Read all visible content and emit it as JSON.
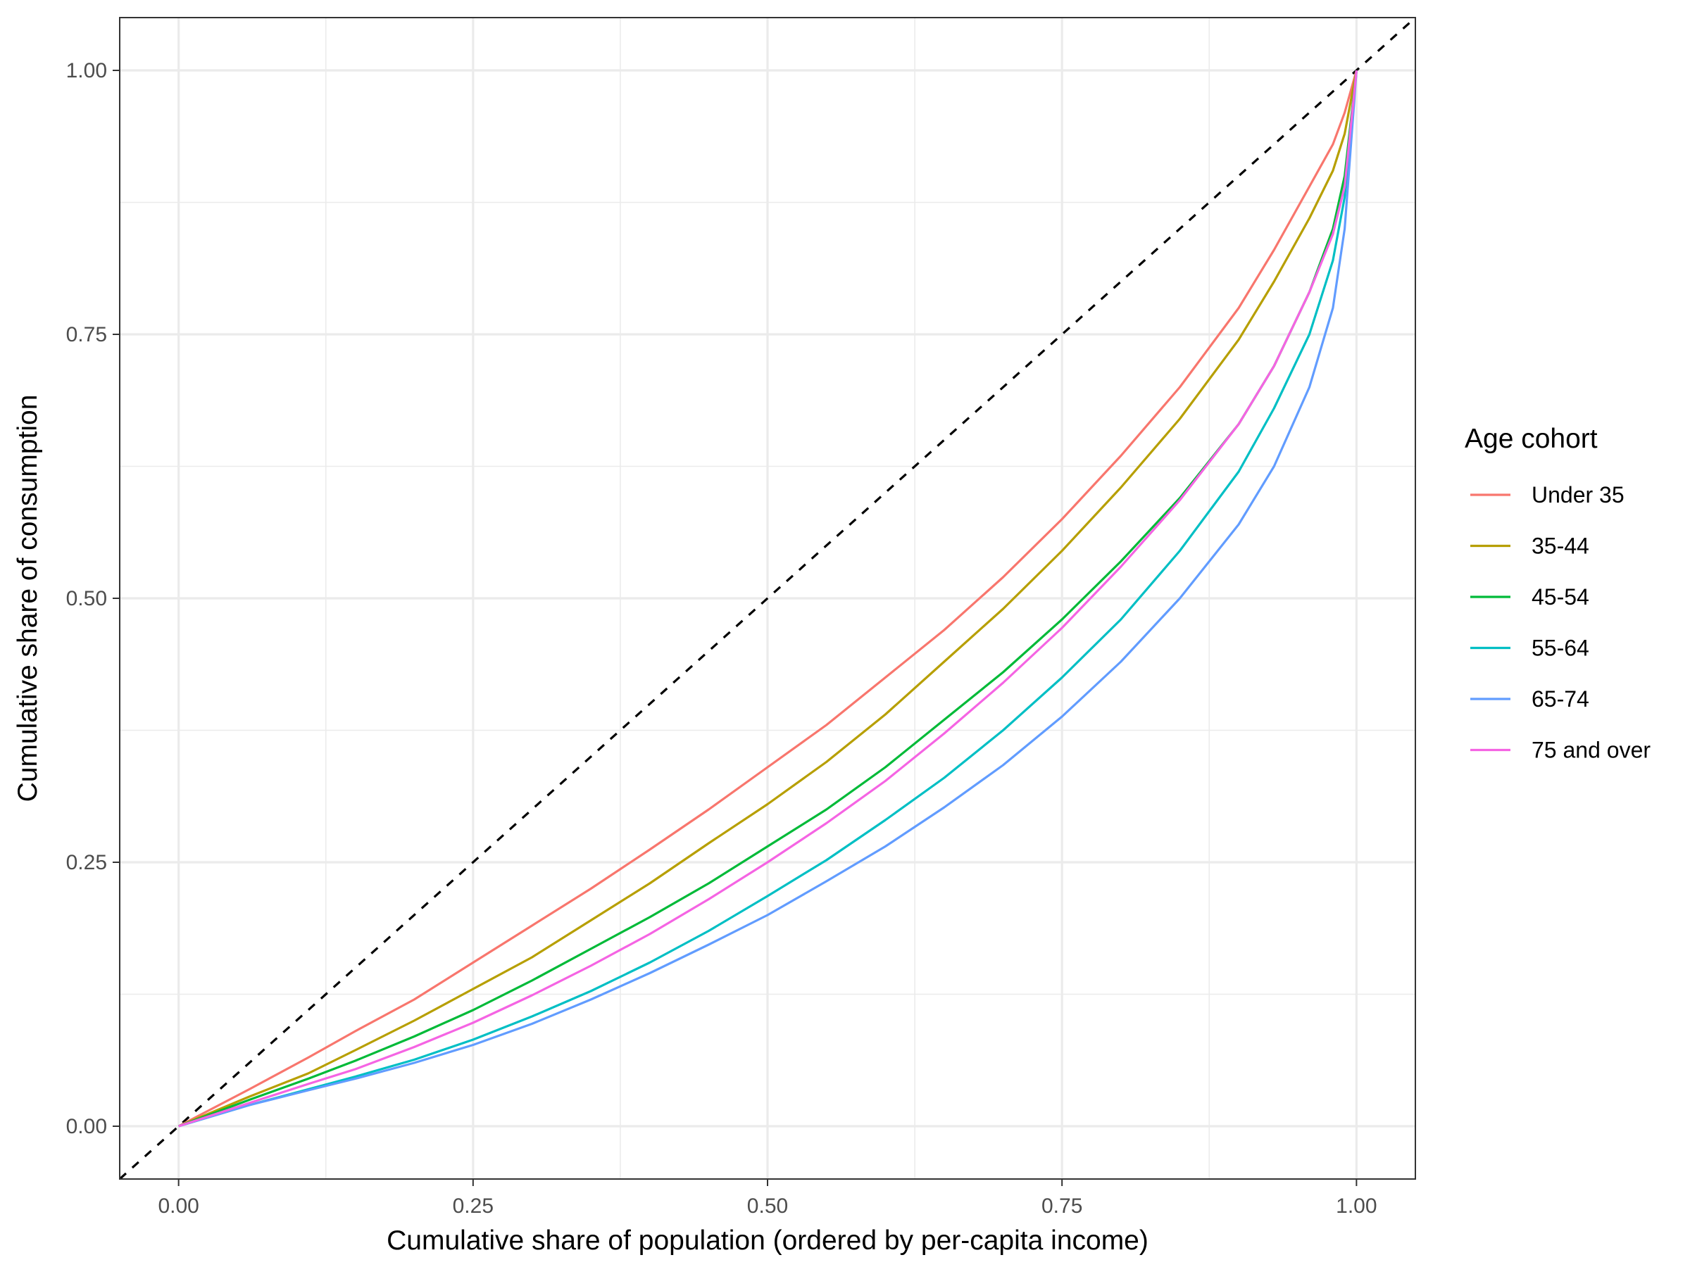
{
  "chart_data": {
    "type": "line",
    "title": "",
    "xlabel": "Cumulative share of population (ordered by per-capita income)",
    "ylabel": "Cumulative share of consumption",
    "xlim": [
      -0.05,
      1.05
    ],
    "ylim": [
      -0.05,
      1.05
    ],
    "x_ticks": [
      0.0,
      0.25,
      0.5,
      0.75,
      1.0
    ],
    "x_tick_labels": [
      "0.00",
      "0.25",
      "0.50",
      "0.75",
      "1.00"
    ],
    "y_ticks": [
      0.0,
      0.25,
      0.5,
      0.75,
      1.0
    ],
    "y_tick_labels": [
      "0.00",
      "0.25",
      "0.50",
      "0.75",
      "1.00"
    ],
    "grid": true,
    "legend": {
      "title": "Age cohort",
      "position": "right"
    },
    "reference_line": {
      "style": "dashed",
      "color": "#000000",
      "x": [
        -0.05,
        1.05
      ],
      "y": [
        -0.05,
        1.05
      ]
    },
    "series": [
      {
        "name": "Under 35",
        "color": "#F8766D",
        "x": [
          0,
          0.06,
          0.11,
          0.15,
          0.2,
          0.25,
          0.3,
          0.35,
          0.4,
          0.45,
          0.5,
          0.55,
          0.6,
          0.65,
          0.7,
          0.75,
          0.8,
          0.85,
          0.9,
          0.93,
          0.96,
          0.98,
          0.99,
          1.0
        ],
        "y": [
          0,
          0.035,
          0.065,
          0.09,
          0.12,
          0.155,
          0.19,
          0.225,
          0.262,
          0.3,
          0.34,
          0.38,
          0.425,
          0.47,
          0.52,
          0.575,
          0.635,
          0.7,
          0.775,
          0.83,
          0.89,
          0.93,
          0.96,
          1.0
        ]
      },
      {
        "name": "35-44",
        "color": "#B79F00",
        "x": [
          0,
          0.06,
          0.11,
          0.15,
          0.2,
          0.25,
          0.3,
          0.35,
          0.4,
          0.45,
          0.5,
          0.55,
          0.6,
          0.65,
          0.7,
          0.75,
          0.8,
          0.85,
          0.9,
          0.93,
          0.96,
          0.98,
          0.99,
          1.0
        ],
        "y": [
          0,
          0.028,
          0.05,
          0.072,
          0.1,
          0.13,
          0.16,
          0.195,
          0.23,
          0.268,
          0.305,
          0.345,
          0.39,
          0.44,
          0.49,
          0.545,
          0.605,
          0.67,
          0.745,
          0.8,
          0.86,
          0.905,
          0.94,
          1.0
        ]
      },
      {
        "name": "45-54",
        "color": "#00BA38",
        "x": [
          0,
          0.06,
          0.11,
          0.15,
          0.2,
          0.25,
          0.3,
          0.35,
          0.4,
          0.45,
          0.5,
          0.55,
          0.6,
          0.65,
          0.7,
          0.75,
          0.8,
          0.85,
          0.9,
          0.93,
          0.96,
          0.98,
          0.99,
          1.0
        ],
        "y": [
          0,
          0.025,
          0.045,
          0.062,
          0.085,
          0.11,
          0.138,
          0.168,
          0.198,
          0.23,
          0.265,
          0.3,
          0.34,
          0.385,
          0.43,
          0.48,
          0.535,
          0.595,
          0.665,
          0.72,
          0.79,
          0.85,
          0.9,
          1.0
        ]
      },
      {
        "name": "55-64",
        "color": "#00BFC4",
        "x": [
          0,
          0.06,
          0.11,
          0.15,
          0.2,
          0.25,
          0.3,
          0.35,
          0.4,
          0.45,
          0.5,
          0.55,
          0.6,
          0.65,
          0.7,
          0.75,
          0.8,
          0.85,
          0.9,
          0.93,
          0.96,
          0.98,
          0.99,
          1.0
        ],
        "y": [
          0,
          0.02,
          0.035,
          0.047,
          0.063,
          0.082,
          0.104,
          0.128,
          0.155,
          0.185,
          0.218,
          0.252,
          0.29,
          0.33,
          0.375,
          0.425,
          0.48,
          0.545,
          0.62,
          0.68,
          0.75,
          0.82,
          0.88,
          1.0
        ]
      },
      {
        "name": "65-74",
        "color": "#619CFF",
        "x": [
          0,
          0.06,
          0.11,
          0.15,
          0.2,
          0.25,
          0.3,
          0.35,
          0.4,
          0.45,
          0.5,
          0.55,
          0.6,
          0.65,
          0.7,
          0.75,
          0.8,
          0.85,
          0.9,
          0.93,
          0.96,
          0.98,
          0.99,
          1.0
        ],
        "y": [
          0,
          0.02,
          0.034,
          0.045,
          0.06,
          0.077,
          0.097,
          0.12,
          0.145,
          0.172,
          0.2,
          0.232,
          0.265,
          0.302,
          0.342,
          0.388,
          0.44,
          0.5,
          0.57,
          0.625,
          0.7,
          0.775,
          0.85,
          1.0
        ]
      },
      {
        "name": "75 and over",
        "color": "#F564E3",
        "x": [
          0,
          0.06,
          0.11,
          0.15,
          0.2,
          0.25,
          0.3,
          0.35,
          0.4,
          0.45,
          0.5,
          0.55,
          0.6,
          0.65,
          0.7,
          0.75,
          0.8,
          0.85,
          0.9,
          0.93,
          0.96,
          0.98,
          0.99,
          1.0
        ],
        "y": [
          0,
          0.022,
          0.04,
          0.054,
          0.075,
          0.098,
          0.124,
          0.152,
          0.182,
          0.215,
          0.25,
          0.287,
          0.327,
          0.372,
          0.42,
          0.472,
          0.53,
          0.593,
          0.665,
          0.72,
          0.79,
          0.845,
          0.89,
          1.0
        ]
      }
    ]
  }
}
